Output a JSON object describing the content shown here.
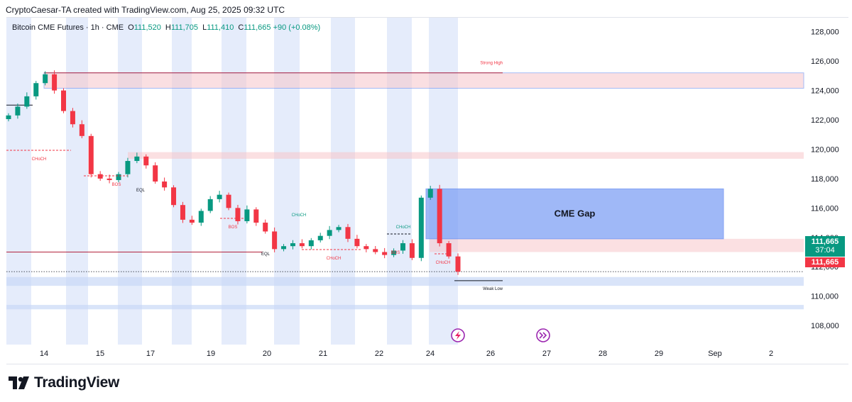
{
  "header": {
    "attribution": "CryptoCaesar-TA created with TradingView.com, Aug 25, 2025 09:32 UTC"
  },
  "legend": {
    "symbol": "Bitcoin CME Futures · 1h · CME",
    "open_key": "O",
    "open": "111,520",
    "high_key": "H",
    "high": "111,705",
    "low_key": "L",
    "low": "111,410",
    "close_key": "C",
    "close": "111,665",
    "change": "+90 (+0.08%)"
  },
  "price_tags": {
    "last_price": "111,665",
    "countdown": "37:04",
    "close_tag": "111,665"
  },
  "brand": {
    "name": "TradingView"
  },
  "colors": {
    "up": "#089981",
    "down": "#f23645",
    "zone_red": "#f7c6cb",
    "zone_blue": "#c9d8f7",
    "gap": "#7fa1f5",
    "session": "#e5ecfb"
  },
  "icons": [
    "tradingview-logo-icon",
    "economic-event-icon",
    "fast-forward-event-icon"
  ],
  "chart_data": {
    "type": "candlestick",
    "symbol": "Bitcoin CME Futures",
    "interval": "1h",
    "y_axis": {
      "ticks": [
        108000,
        110000,
        112000,
        114000,
        116000,
        118000,
        120000,
        122000,
        124000,
        126000,
        128000
      ],
      "tick_labels": [
        "108,000",
        "110,000",
        "112,000",
        "114,000",
        "116,000",
        "118,000",
        "120,000",
        "122,000",
        "124,000",
        "126,000",
        "128,000"
      ],
      "range": [
        106700,
        129000
      ]
    },
    "x_axis": {
      "tick_labels": [
        "14",
        "15",
        "17",
        "19",
        "20",
        "21",
        "22",
        "24",
        "26",
        "27",
        "28",
        "29",
        "Sep",
        "2"
      ]
    },
    "series": [
      {
        "values": [
          122300,
          122900,
          123600,
          124500,
          125100,
          124000,
          122600,
          121700,
          120900,
          118300,
          118000,
          117900,
          118300,
          119200,
          119500,
          118900,
          117800,
          117400,
          116200,
          115200,
          115000,
          115800,
          116600,
          116900,
          116000,
          115100,
          115900,
          115000,
          114400,
          113200,
          113400,
          113600,
          113400,
          113800,
          114100,
          114500,
          114700,
          113900,
          113400,
          113200,
          113000,
          112800,
          113100,
          113600,
          112600,
          116700,
          117300,
          113600,
          112700,
          111665
        ]
      }
    ],
    "zones": [
      {
        "label": "Strong High",
        "from": 124150,
        "to": 125200,
        "color": "red"
      },
      {
        "label": "",
        "from": 119350,
        "to": 119800,
        "color": "red"
      },
      {
        "label": "",
        "from": 113000,
        "to": 113900,
        "color": "red"
      },
      {
        "label": "CME Gap",
        "from": 113900,
        "to": 117300,
        "color": "blue"
      },
      {
        "label": "",
        "from": 110700,
        "to": 111300,
        "color": "blue"
      },
      {
        "label": "",
        "from": 109100,
        "to": 109400,
        "color": "blue"
      }
    ],
    "levels": [
      {
        "price": 125200,
        "label": "Strong High"
      },
      {
        "price": 123000,
        "label": ""
      },
      {
        "price": 113000,
        "label": ""
      },
      {
        "price": 111050,
        "label": "Weak Low"
      }
    ],
    "annotations": [
      {
        "text": "CHoCH",
        "kind": "bear"
      },
      {
        "text": "BOS",
        "kind": "bear"
      },
      {
        "text": "EQL",
        "kind": "neutral"
      },
      {
        "text": "BOS",
        "kind": "bear"
      },
      {
        "text": "EQL",
        "kind": "neutral"
      },
      {
        "text": "CHoCH",
        "kind": "bull"
      },
      {
        "text": "CHoCH",
        "kind": "bear"
      },
      {
        "text": "BOS",
        "kind": "bear"
      },
      {
        "text": "CHoCH",
        "kind": "bull"
      },
      {
        "text": "CHoCH",
        "kind": "bear"
      }
    ],
    "legend_placement": "top-left",
    "grid": false
  }
}
